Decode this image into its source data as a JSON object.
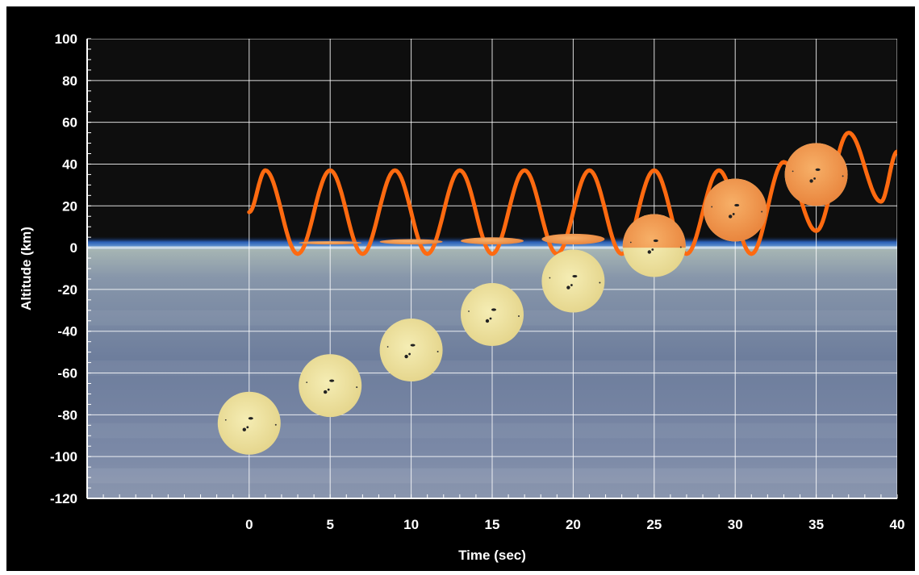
{
  "chart_data": {
    "type": "line",
    "xlabel": "Time (sec)",
    "ylabel": "Altitude (km)",
    "xlim": [
      -10,
      40
    ],
    "ylim": [
      -120,
      100
    ],
    "x_ticks": [
      0,
      5,
      10,
      15,
      20,
      25,
      30,
      35,
      40
    ],
    "y_ticks": [
      100,
      80,
      60,
      40,
      20,
      0,
      -20,
      -40,
      -60,
      -80,
      -100,
      -120
    ],
    "grid": true,
    "series": [
      {
        "kind": "oscillation",
        "color": "#ff6a10",
        "x_start": 0,
        "x_end": 40,
        "period_sec": 4,
        "points": [
          {
            "x": 0,
            "y": 17
          },
          {
            "x": 1,
            "y": 37
          },
          {
            "x": 3,
            "y": -3
          },
          {
            "x": 5,
            "y": 37
          },
          {
            "x": 7,
            "y": -3
          },
          {
            "x": 9,
            "y": 37
          },
          {
            "x": 11,
            "y": -3
          },
          {
            "x": 13,
            "y": 37
          },
          {
            "x": 15,
            "y": -3
          },
          {
            "x": 17,
            "y": 37
          },
          {
            "x": 19,
            "y": -3
          },
          {
            "x": 21,
            "y": 37
          },
          {
            "x": 23,
            "y": -3
          },
          {
            "x": 25,
            "y": 37
          },
          {
            "x": 27,
            "y": -3
          },
          {
            "x": 29,
            "y": 37
          },
          {
            "x": 31,
            "y": -3
          },
          {
            "x": 33,
            "y": 41
          },
          {
            "x": 35,
            "y": 8
          },
          {
            "x": 37,
            "y": 55
          },
          {
            "x": 39,
            "y": 22
          },
          {
            "x": 40,
            "y": 46
          }
        ]
      }
    ],
    "suns": [
      {
        "x": 0,
        "y": -84,
        "visible_fraction": 0
      },
      {
        "x": 5,
        "y": -66,
        "visible_fraction": 0.02
      },
      {
        "x": 10,
        "y": -49,
        "visible_fraction": 0.15
      },
      {
        "x": 15,
        "y": -32,
        "visible_fraction": 0.2
      },
      {
        "x": 20,
        "y": -16,
        "visible_fraction": 0.3
      },
      {
        "x": 25,
        "y": 1,
        "visible_fraction": 0.4
      },
      {
        "x": 30,
        "y": 18,
        "visible_fraction": 0.65
      },
      {
        "x": 35,
        "y": 35,
        "visible_fraction": 1.0
      }
    ],
    "colors": {
      "sky": "#0e0e0e",
      "earth": "#6f7f9c",
      "horizon_glow": "#2f64b8",
      "sun_below": "#ece2a2",
      "sun_above": "#f29a52",
      "grid": "#ffffff"
    }
  }
}
